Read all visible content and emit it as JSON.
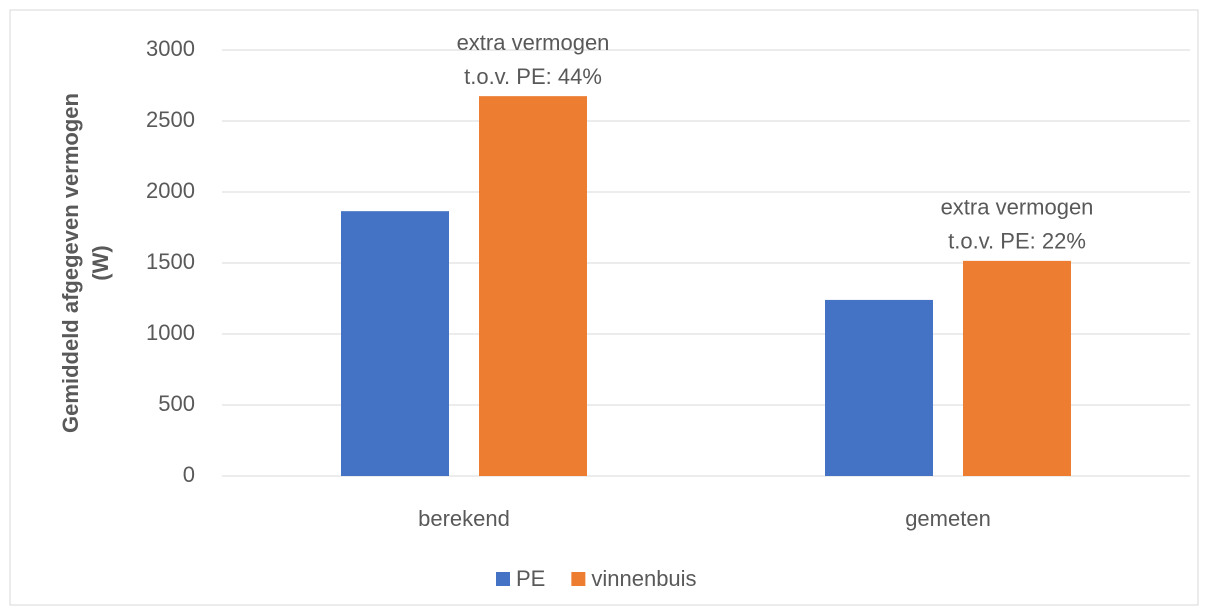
{
  "chart_data": {
    "type": "bar",
    "y_label": [
      "Gemiddeld afgegeven vermogen",
      "(W)"
    ],
    "categories": [
      "berekend",
      "gemeten"
    ],
    "series": [
      {
        "name": "PE",
        "color": "#4472c4",
        "values": [
          1865,
          1240
        ]
      },
      {
        "name": "vinnenbuis",
        "color": "#ed7d31",
        "values": [
          2675,
          1515
        ]
      }
    ],
    "annotations": [
      {
        "category": 0,
        "series": 1,
        "lines": [
          "extra vermogen",
          "t.o.v. PE: 44%"
        ]
      },
      {
        "category": 1,
        "series": 1,
        "lines": [
          "extra vermogen",
          "t.o.v. PE: 22%"
        ]
      }
    ],
    "ylim": [
      0,
      3000
    ],
    "yticks": [
      0,
      500,
      1000,
      1500,
      2000,
      2500,
      3000
    ],
    "grid": true,
    "legend": "bottom"
  }
}
